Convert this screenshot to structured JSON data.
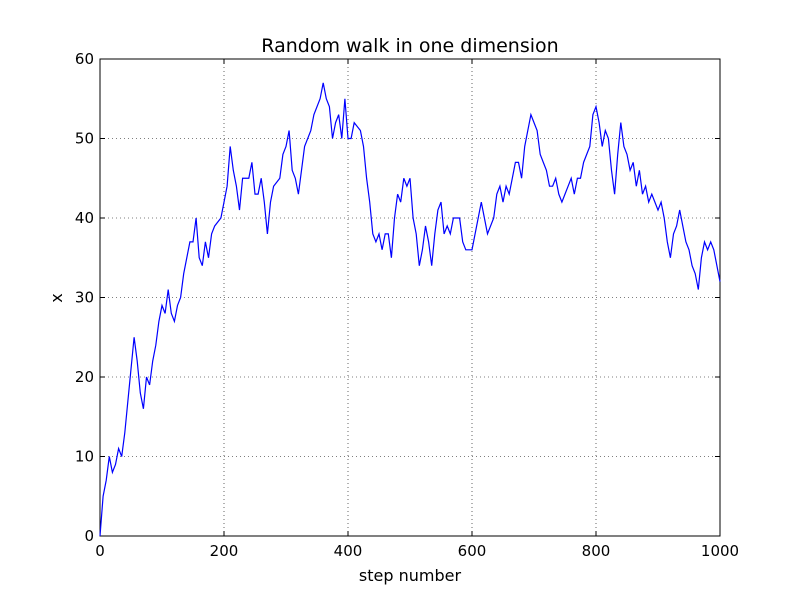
{
  "chart_data": {
    "type": "line",
    "title": "Random walk in one dimension",
    "x_label": "step number",
    "y_label": "x",
    "x": [
      0,
      5,
      10,
      15,
      20,
      25,
      30,
      35,
      40,
      45,
      50,
      55,
      60,
      65,
      70,
      75,
      80,
      85,
      90,
      95,
      100,
      105,
      110,
      115,
      120,
      125,
      130,
      135,
      140,
      145,
      150,
      155,
      160,
      165,
      170,
      175,
      180,
      185,
      195,
      200,
      205,
      210,
      215,
      220,
      225,
      230,
      240,
      245,
      250,
      255,
      260,
      265,
      270,
      275,
      280,
      290,
      295,
      300,
      305,
      310,
      315,
      320,
      330,
      340,
      345,
      355,
      360,
      365,
      370,
      375,
      380,
      385,
      390,
      395,
      400,
      405,
      410,
      420,
      425,
      430,
      435,
      440,
      445,
      450,
      455,
      460,
      465,
      470,
      475,
      480,
      485,
      490,
      495,
      500,
      505,
      510,
      515,
      520,
      525,
      530,
      535,
      540,
      545,
      550,
      555,
      560,
      565,
      570,
      580,
      585,
      590,
      600,
      605,
      610,
      615,
      620,
      625,
      635,
      640,
      645,
      650,
      655,
      660,
      665,
      670,
      675,
      680,
      685,
      690,
      695,
      700,
      705,
      710,
      715,
      720,
      725,
      730,
      735,
      740,
      745,
      750,
      755,
      760,
      765,
      770,
      775,
      780,
      785,
      790,
      795,
      800,
      805,
      810,
      815,
      820,
      825,
      830,
      835,
      840,
      845,
      850,
      855,
      860,
      865,
      870,
      875,
      880,
      885,
      890,
      895,
      900,
      905,
      910,
      915,
      920,
      925,
      930,
      935,
      940,
      945,
      950,
      955,
      960,
      965,
      970,
      975,
      980,
      985,
      990,
      995,
      1000
    ],
    "series": [
      {
        "name": "x",
        "color": "#0000ff",
        "values": [
          0,
          5,
          7,
          10,
          8,
          9,
          11,
          10,
          13,
          17,
          21,
          25,
          22,
          18,
          16,
          20,
          19,
          22,
          24,
          27,
          29,
          28,
          31,
          28,
          27,
          29,
          30,
          33,
          35,
          37,
          37,
          40,
          35,
          34,
          37,
          35,
          38,
          39,
          40,
          42,
          44,
          49,
          46,
          44,
          41,
          45,
          45,
          47,
          43,
          43,
          45,
          42,
          38,
          42,
          44,
          45,
          48,
          49,
          51,
          46,
          45,
          43,
          49,
          51,
          53,
          55,
          57,
          55,
          54,
          50,
          52,
          53,
          50,
          55,
          50,
          50,
          52,
          51,
          49,
          45,
          42,
          38,
          37,
          38,
          36,
          38,
          38,
          35,
          40,
          43,
          42,
          45,
          44,
          45,
          40,
          38,
          34,
          36,
          39,
          37,
          34,
          38,
          41,
          42,
          38,
          39,
          38,
          40,
          40,
          37,
          36,
          36,
          38,
          40,
          42,
          40,
          38,
          40,
          43,
          44,
          42,
          44,
          43,
          45,
          47,
          47,
          45,
          49,
          51,
          53,
          52,
          51,
          48,
          47,
          46,
          44,
          44,
          45,
          43,
          42,
          43,
          44,
          45,
          43,
          45,
          45,
          47,
          48,
          49,
          53,
          54,
          52,
          49,
          51,
          50,
          46,
          43,
          48,
          52,
          49,
          48,
          46,
          47,
          44,
          46,
          43,
          44,
          42,
          43,
          42,
          41,
          42,
          40,
          37,
          35,
          38,
          39,
          41,
          39,
          37,
          36,
          34,
          33,
          31,
          35,
          37,
          36,
          37,
          36,
          34,
          32
        ]
      }
    ],
    "xlim": [
      0,
      1000
    ],
    "xticks": [
      0,
      200,
      400,
      600,
      800,
      1000
    ],
    "ylim": [
      0,
      60
    ],
    "yticks": [
      0,
      10,
      20,
      30,
      40,
      50,
      60
    ],
    "grid": true
  }
}
